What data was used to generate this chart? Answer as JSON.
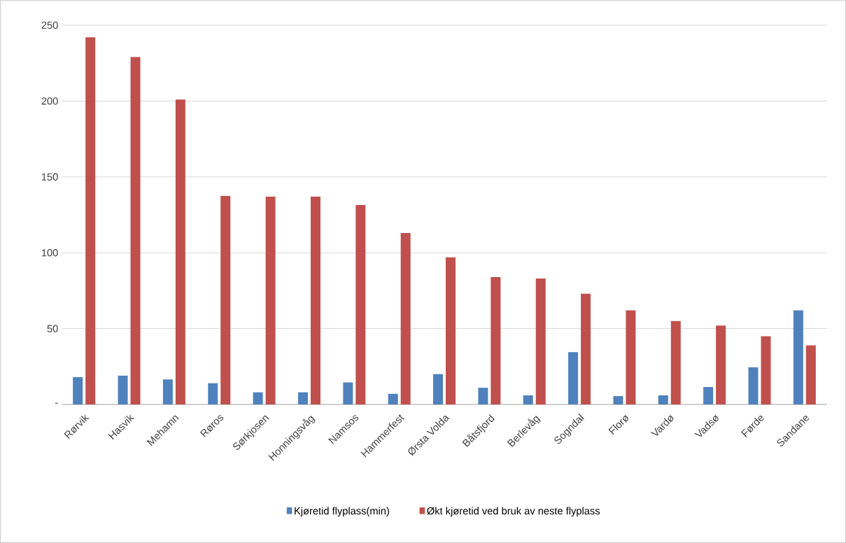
{
  "chart_data": {
    "type": "bar",
    "categories": [
      "Rørvik",
      "Hasvik",
      "Mehamn",
      "Røros",
      "Sørkjosen",
      "Honningsvåg",
      "Namsos",
      "Hammerfest",
      "Ørsta Volda",
      "Båtsfjord",
      "Berlevåg",
      "Sogndal",
      "Florø",
      "Vardø",
      "Vadsø",
      "Førde",
      "Sandane"
    ],
    "series": [
      {
        "name": "Kjøretid flyplass(min)",
        "color": "#4f81bd",
        "values": [
          18,
          19,
          16.5,
          14,
          8,
          8,
          14.5,
          7,
          20,
          11,
          6,
          34.5,
          5.5,
          6,
          11.5,
          24.5,
          62
        ]
      },
      {
        "name": "Økt kjøretid ved bruk av neste flyplass",
        "color": "#c0504d",
        "values": [
          242,
          229,
          201,
          137.5,
          137,
          137,
          131.5,
          113,
          97,
          84,
          83,
          73,
          62,
          55,
          52,
          45,
          39
        ]
      }
    ],
    "ylim": [
      0,
      250
    ],
    "yticks": [
      {
        "value": 0,
        "label": "-"
      },
      50,
      100,
      150,
      200,
      250
    ],
    "grid": "y",
    "legend": "bottom"
  }
}
